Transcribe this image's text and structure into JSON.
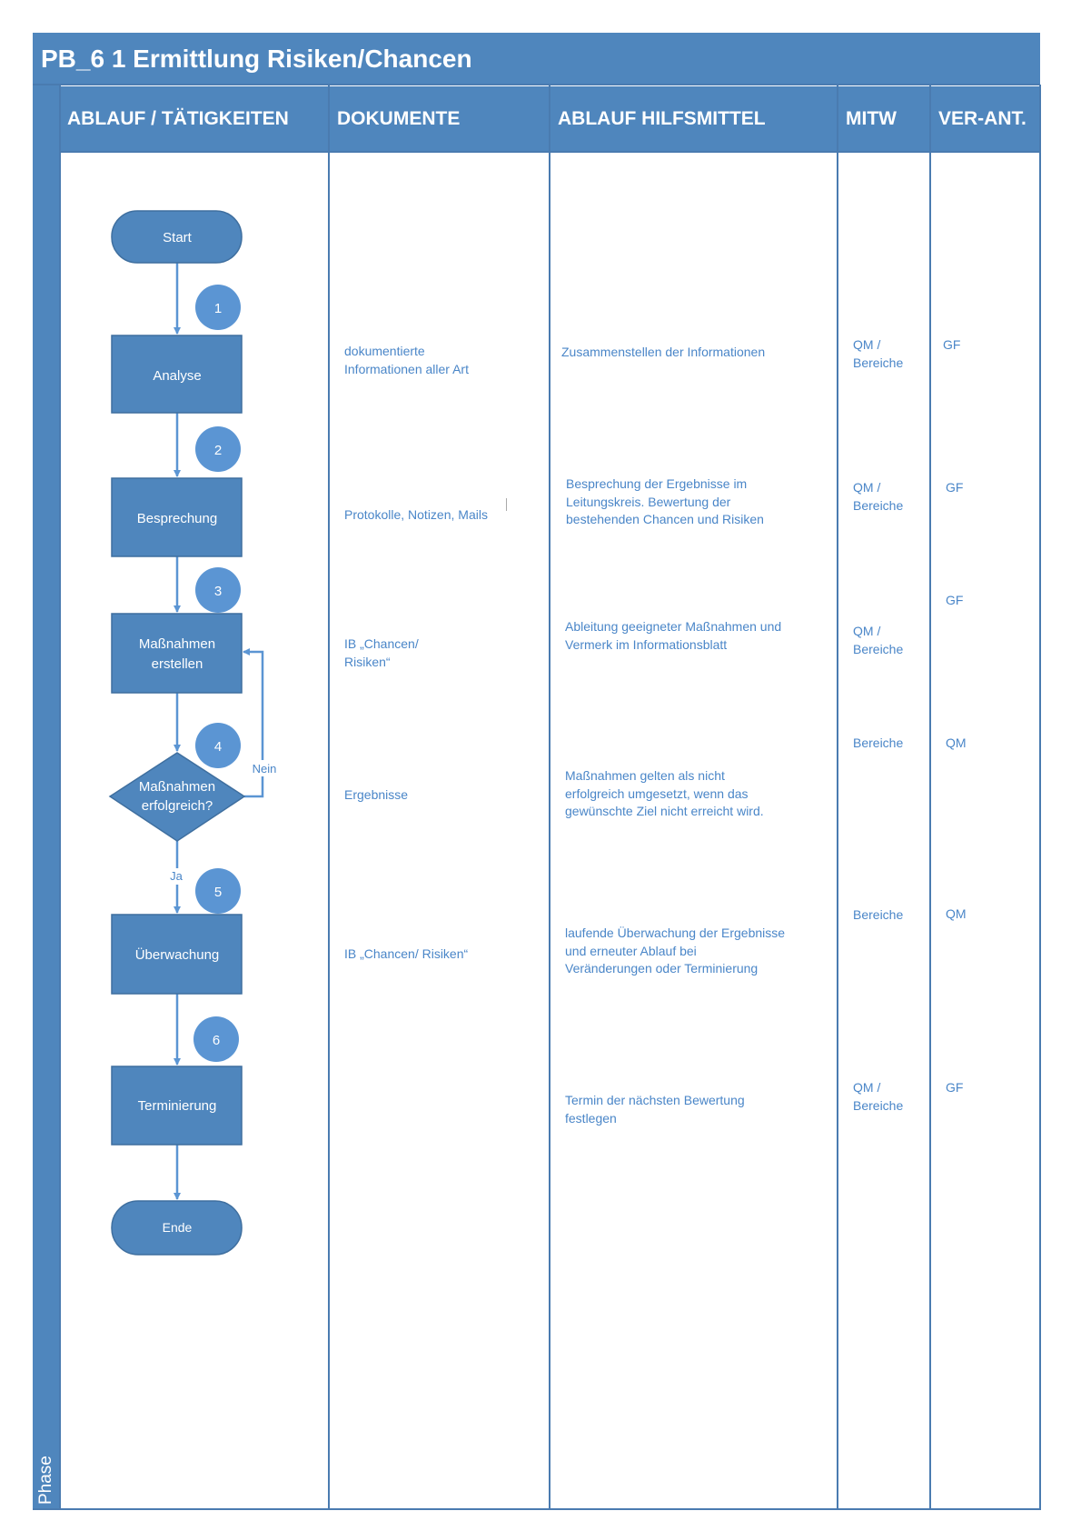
{
  "title": "PB_6 1 Ermittlung Risiken/Chancen",
  "phase_label": "Phase",
  "columns": [
    "ABLAUF / TÄTIGKEITEN",
    "DOKUMENTE",
    "ABLAUF HILFSMITTEL",
    "MITW",
    "VER-ANT."
  ],
  "colors": {
    "header": "#4f86bd",
    "shape": "#4f86bd",
    "circle": "#5b95d3",
    "text": "#4a86c8"
  },
  "flow": {
    "start": "Start",
    "end": "Ende",
    "steps": [
      {
        "num": "1",
        "label": "Analyse"
      },
      {
        "num": "2",
        "label": "Besprechung"
      },
      {
        "num": "3",
        "label": "Maßnahmen\nerstellen"
      },
      {
        "num": "4",
        "label": "Maßnahmen\nerfolgreich?"
      },
      {
        "num": "5",
        "label": "Überwachung"
      },
      {
        "num": "6",
        "label": "Terminierung"
      }
    ],
    "no_label": "Nein",
    "yes_label": "Ja"
  },
  "rows": [
    {
      "doc": "dokumentierte\nInformationen aller Art",
      "aid": "Zusammenstellen der Informationen",
      "mitw": "QM /\nBereiche",
      "ver": "GF"
    },
    {
      "doc": "Protokolle, Notizen, Mails",
      "aid": "Besprechung der Ergebnisse im\nLeitungskreis. Bewertung der\nbestehenden Chancen und Risiken",
      "mitw": "QM /\nBereiche",
      "ver": "GF"
    },
    {
      "doc": "IB „Chancen/\nRisiken“",
      "aid": "Ableitung geeigneter Maßnahmen und\nVermerk im Informationsblatt",
      "mitw": "QM /\nBereiche",
      "ver": "GF"
    },
    {
      "doc": "Ergebnisse",
      "aid": "Maßnahmen gelten als nicht\nerfolgreich umgesetzt, wenn das\ngewünschte Ziel nicht erreicht wird.",
      "mitw": "Bereiche",
      "ver": "QM"
    },
    {
      "doc": "IB „Chancen/ Risiken“",
      "aid": "laufende Überwachung der Ergebnisse\nund erneuter Ablauf bei\nVeränderungen oder Terminierung",
      "mitw": "Bereiche",
      "ver": "QM"
    },
    {
      "doc": "",
      "aid": "Termin der nächsten Bewertung\nfestlegen",
      "mitw": "QM /\nBereiche",
      "ver": "GF"
    }
  ]
}
